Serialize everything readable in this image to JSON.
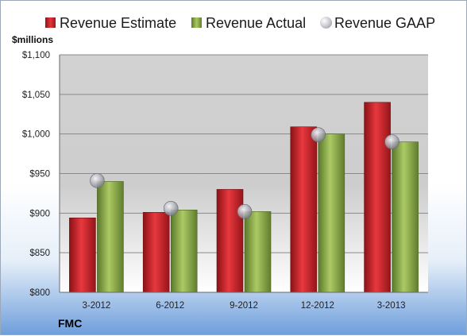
{
  "legend": {
    "estimate": "Revenue Estimate",
    "actual": "Revenue Actual",
    "gaap": "Revenue GAAP"
  },
  "unit_label": "$millions",
  "brand": "FMC",
  "colors": {
    "estimate": "#d9262c",
    "actual": "#93b550",
    "gaap": "#b8b8c2"
  },
  "chart_data": {
    "type": "bar",
    "categories": [
      "3-2012",
      "6-2012",
      "9-2012",
      "12-2012",
      "3-2013"
    ],
    "series": [
      {
        "name": "Revenue Estimate",
        "values": [
          894,
          901,
          930,
          1009,
          1040
        ]
      },
      {
        "name": "Revenue Actual",
        "values": [
          940,
          904,
          902,
          1000,
          990
        ]
      },
      {
        "name": "Revenue GAAP",
        "type": "scatter",
        "values": [
          941,
          906,
          902,
          999,
          990
        ]
      }
    ],
    "ylabel": "$millions",
    "ylim": [
      800,
      1100
    ],
    "yticks": [
      800,
      850,
      900,
      950,
      1000,
      1050,
      1100
    ],
    "ytick_labels": [
      "$800",
      "$850",
      "$900",
      "$950",
      "$1,000",
      "$1,050",
      "$1,100"
    ],
    "grid": true,
    "legend_position": "top"
  }
}
